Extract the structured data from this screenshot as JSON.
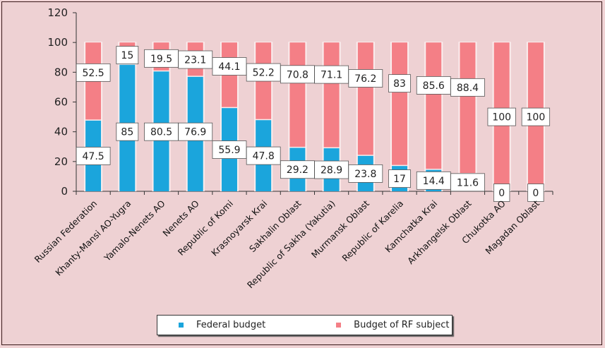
{
  "chart_data": {
    "type": "bar",
    "stacked": true,
    "title": "",
    "xlabel": "",
    "ylabel": "",
    "ylim": [
      0,
      120
    ],
    "yticks": [
      0,
      20,
      40,
      60,
      80,
      100,
      120
    ],
    "grid": false,
    "legend_position": "bottom",
    "categories": [
      "Russian Federation",
      "Khanty-Mansi AO-Yugra",
      "Yamalo-Nenets AO",
      "Nenets AO",
      "Republic of Komi",
      "Krasnoyarsk Krai",
      "Sakhalin Oblast",
      "Republic of Sakha (Yakutia)",
      "Murmansk Oblast",
      "Republic of Karelia",
      "Kamchatka Krai",
      "Arkhangelsk Oblast",
      "Chukotka AO",
      "Magadan Oblast"
    ],
    "series": [
      {
        "name": "Federal budget",
        "color": "#1ba5dc",
        "values": [
          47.5,
          85,
          80.5,
          76.9,
          55.9,
          47.8,
          29.2,
          28.9,
          23.8,
          17,
          14.4,
          11.6,
          0,
          0
        ],
        "labels": [
          "47.5",
          "85",
          "80.5",
          "76.9",
          "55.9",
          "47.8",
          "29.2",
          "28.9",
          "23.8",
          "17",
          "14.4",
          "11.6",
          "0",
          "0"
        ]
      },
      {
        "name": "Budget of RF subject",
        "color": "#f47f86",
        "values": [
          52.5,
          15,
          19.5,
          23.1,
          44.1,
          52.2,
          70.8,
          71.1,
          76.2,
          83,
          85.6,
          88.4,
          100,
          100
        ],
        "labels": [
          "52.5",
          "15",
          "19.5",
          "23.1",
          "44.1",
          "52.2",
          "70.8",
          "71.1",
          "76.2",
          "83",
          "85.6",
          "88.4",
          "100",
          "100"
        ]
      }
    ]
  },
  "legend": {
    "items": [
      {
        "label": "Federal budget",
        "color": "#1ba5dc"
      },
      {
        "label": "Budget of RF subject",
        "color": "#f47f86"
      }
    ]
  }
}
